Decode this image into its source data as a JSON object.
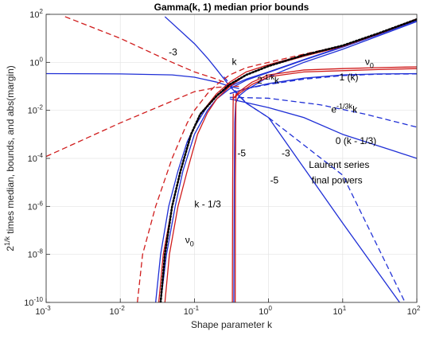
{
  "chart_data": {
    "type": "line",
    "title": "Gamma(k, 1) median prior bounds",
    "xlabel": "Shape parameter k",
    "ylabel": {
      "prefix": "2",
      "sup": "1/k",
      "rest": " times median, bounds, and abs(margin)"
    },
    "x_scale": "log",
    "y_scale": "log",
    "xlim": [
      0.001,
      100
    ],
    "ylim": [
      1e-10,
      100
    ],
    "x_ticks": [
      {
        "value": 0.001,
        "base": "10",
        "exp": "-3"
      },
      {
        "value": 0.01,
        "base": "10",
        "exp": "-2"
      },
      {
        "value": 0.1,
        "base": "10",
        "exp": "-1"
      },
      {
        "value": 1,
        "base": "10",
        "exp": "0"
      },
      {
        "value": 10,
        "base": "10",
        "exp": "1"
      },
      {
        "value": 100,
        "base": "10",
        "exp": "2"
      }
    ],
    "y_ticks": [
      {
        "value": 1e-10,
        "base": "10",
        "exp": "-10"
      },
      {
        "value": 1e-08,
        "base": "10",
        "exp": "-8"
      },
      {
        "value": 1e-06,
        "base": "10",
        "exp": "-6"
      },
      {
        "value": 0.0001,
        "base": "10",
        "exp": "-4"
      },
      {
        "value": 0.01,
        "base": "10",
        "exp": "-2"
      },
      {
        "value": 1,
        "base": "10",
        "exp": "0"
      },
      {
        "value": 100,
        "base": "10",
        "exp": "2"
      }
    ],
    "grid": true,
    "colors": {
      "red": "#d01c1c",
      "blue": "#1f2fd6",
      "median": "#000000"
    },
    "series": [
      {
        "color": "blue",
        "style": "solid",
        "points": [
          [
            0.001,
            0.34
          ],
          [
            0.01,
            0.33
          ],
          [
            0.05,
            0.3
          ],
          [
            0.1,
            0.24
          ],
          [
            0.2,
            0.15
          ],
          [
            0.3,
            0.1
          ],
          [
            0.4,
            0.08
          ]
        ]
      },
      {
        "color": "blue",
        "style": "solid",
        "points": [
          [
            0.04,
            80
          ],
          [
            0.1,
            6
          ],
          [
            0.15,
            1.5
          ],
          [
            0.2,
            0.5
          ],
          [
            0.3,
            0.1
          ],
          [
            0.4,
            0.04
          ],
          [
            0.5,
            0.02
          ],
          [
            1,
            0.005
          ],
          [
            10,
            2e-07
          ],
          [
            100,
            1e-11
          ]
        ]
      },
      {
        "color": "blue",
        "style": "dashed",
        "points": [
          [
            0.25,
            0.25
          ],
          [
            0.35,
            0.07
          ],
          [
            0.5,
            0.02
          ],
          [
            1,
            0.005
          ],
          [
            10,
            2e-05
          ],
          [
            100,
            1e-11
          ]
        ]
      },
      {
        "color": "blue",
        "style": "solid",
        "points": [
          [
            0.3,
            0.03
          ],
          [
            1,
            0.013
          ],
          [
            3,
            0.005
          ],
          [
            10,
            0.001
          ],
          [
            50,
            0.0002
          ],
          [
            100,
            0.0001
          ]
        ]
      },
      {
        "color": "blue",
        "style": "dashed",
        "points": [
          [
            0.3,
            0.035
          ],
          [
            1,
            0.032
          ],
          [
            5,
            0.017
          ],
          [
            20,
            0.007
          ],
          [
            100,
            0.002
          ]
        ]
      },
      {
        "color": "blue",
        "style": "solid",
        "points": [
          [
            0.3,
            0.05
          ],
          [
            0.5,
            0.08
          ],
          [
            1,
            0.13
          ],
          [
            3,
            0.22
          ],
          [
            10,
            0.3
          ],
          [
            30,
            0.33
          ],
          [
            100,
            0.34
          ]
        ]
      },
      {
        "color": "blue",
        "style": "dashed",
        "points": [
          [
            0.3,
            0.05
          ],
          [
            0.5,
            0.08
          ],
          [
            1,
            0.12
          ],
          [
            3,
            0.2
          ],
          [
            10,
            0.28
          ],
          [
            30,
            0.32
          ],
          [
            100,
            0.33
          ]
        ]
      },
      {
        "color": "blue",
        "style": "solid",
        "points": [
          [
            0.03,
            1e-10
          ],
          [
            0.035,
            1e-08
          ],
          [
            0.045,
            1e-06
          ],
          [
            0.06,
            3e-05
          ],
          [
            0.08,
            0.0005
          ],
          [
            0.1,
            0.002
          ],
          [
            0.15,
            0.015
          ],
          [
            0.2,
            0.04
          ],
          [
            0.3,
            0.1
          ],
          [
            0.5,
            0.2
          ],
          [
            1,
            0.4
          ],
          [
            3,
            1.3
          ],
          [
            10,
            4.5
          ],
          [
            30,
            15
          ],
          [
            100,
            60
          ]
        ]
      },
      {
        "color": "blue",
        "style": "solid",
        "points": [
          [
            0.035,
            1e-10
          ],
          [
            0.042,
            1e-08
          ],
          [
            0.055,
            1e-06
          ],
          [
            0.07,
            3e-05
          ],
          [
            0.1,
            0.001
          ],
          [
            0.15,
            0.01
          ],
          [
            0.2,
            0.03
          ],
          [
            0.3,
            0.08
          ],
          [
            0.5,
            0.18
          ],
          [
            1,
            0.38
          ],
          [
            3,
            1.25
          ],
          [
            10,
            4.3
          ],
          [
            30,
            14
          ],
          [
            100,
            55
          ]
        ]
      },
      {
        "color": "blue",
        "style": "solid",
        "points": [
          [
            0.34,
            1e-10
          ],
          [
            0.345,
            1e-05
          ],
          [
            0.35,
            0.003
          ],
          [
            0.36,
            0.02
          ],
          [
            0.4,
            0.04
          ],
          [
            0.5,
            0.07
          ],
          [
            1,
            0.25
          ],
          [
            3,
            1
          ],
          [
            10,
            3.5
          ],
          [
            100,
            50
          ]
        ]
      },
      {
        "color": "red",
        "style": "dashed",
        "points": [
          [
            0.001,
            0.00012
          ],
          [
            0.01,
            0.003
          ],
          [
            0.1,
            0.06
          ],
          [
            0.2,
            0.09
          ],
          [
            0.3,
            0.1
          ],
          [
            0.4,
            0.1
          ]
        ]
      },
      {
        "color": "red",
        "style": "dashed",
        "points": [
          [
            0.0018,
            80
          ],
          [
            0.01,
            10
          ],
          [
            0.05,
            1
          ],
          [
            0.1,
            0.4
          ],
          [
            0.2,
            0.2
          ],
          [
            0.3,
            0.12
          ],
          [
            0.35,
            0.1
          ]
        ]
      },
      {
        "color": "red",
        "style": "dashed",
        "points": [
          [
            0.017,
            1e-10
          ],
          [
            0.02,
            1e-08
          ],
          [
            0.03,
            1e-06
          ],
          [
            0.05,
            0.0001
          ],
          [
            0.08,
            0.003
          ],
          [
            0.1,
            0.01
          ],
          [
            0.15,
            0.05
          ],
          [
            0.2,
            0.12
          ],
          [
            0.3,
            0.3
          ],
          [
            0.5,
            0.6
          ],
          [
            1,
            1
          ],
          [
            3,
            2.2
          ],
          [
            10,
            5
          ],
          [
            30,
            15
          ],
          [
            100,
            60
          ]
        ]
      },
      {
        "color": "red",
        "style": "solid",
        "points": [
          [
            0.033,
            1e-10
          ],
          [
            0.038,
            1e-08
          ],
          [
            0.05,
            1e-06
          ],
          [
            0.065,
            3e-05
          ],
          [
            0.09,
            0.001
          ],
          [
            0.12,
            0.007
          ],
          [
            0.2,
            0.05
          ],
          [
            0.3,
            0.15
          ],
          [
            0.5,
            0.4
          ],
          [
            1,
            0.8
          ],
          [
            3,
            2
          ],
          [
            10,
            5
          ],
          [
            30,
            16
          ],
          [
            100,
            65
          ]
        ]
      },
      {
        "color": "red",
        "style": "solid",
        "points": [
          [
            0.04,
            1e-10
          ],
          [
            0.046,
            1e-08
          ],
          [
            0.06,
            1e-06
          ],
          [
            0.08,
            3e-05
          ],
          [
            0.11,
            0.001
          ],
          [
            0.15,
            0.008
          ],
          [
            0.2,
            0.03
          ],
          [
            0.3,
            0.1
          ],
          [
            0.5,
            0.3
          ],
          [
            1,
            0.7
          ],
          [
            3,
            1.8
          ],
          [
            10,
            4.6
          ],
          [
            30,
            15
          ],
          [
            100,
            60
          ]
        ]
      },
      {
        "color": "red",
        "style": "solid",
        "points": [
          [
            0.325,
            1e-10
          ],
          [
            0.328,
            1e-05
          ],
          [
            0.33,
            0.0005
          ],
          [
            0.332,
            0.01
          ],
          [
            0.335,
            0.05
          ]
        ]
      },
      {
        "color": "red",
        "style": "solid",
        "points": [
          [
            0.355,
            1e-10
          ],
          [
            0.357,
            1e-05
          ],
          [
            0.36,
            0.0005
          ],
          [
            0.362,
            0.01
          ],
          [
            0.365,
            0.05
          ]
        ]
      },
      {
        "color": "red",
        "style": "solid",
        "points": [
          [
            0.33,
            0.03
          ],
          [
            0.4,
            0.06
          ],
          [
            0.6,
            0.15
          ],
          [
            1,
            0.3
          ],
          [
            3,
            0.48
          ],
          [
            10,
            0.55
          ],
          [
            30,
            0.6
          ],
          [
            100,
            0.65
          ]
        ]
      },
      {
        "color": "red",
        "style": "solid",
        "points": [
          [
            0.33,
            0.03
          ],
          [
            0.4,
            0.05
          ],
          [
            0.6,
            0.12
          ],
          [
            1,
            0.25
          ],
          [
            3,
            0.4
          ],
          [
            10,
            0.45
          ],
          [
            30,
            0.5
          ],
          [
            100,
            0.55
          ]
        ]
      },
      {
        "color": "median",
        "style": "dotted",
        "points": [
          [
            0.035,
            1e-10
          ],
          [
            0.04,
            1e-08
          ],
          [
            0.05,
            1e-06
          ],
          [
            0.065,
            3e-05
          ],
          [
            0.09,
            0.001
          ],
          [
            0.12,
            0.007
          ],
          [
            0.2,
            0.04
          ],
          [
            0.3,
            0.12
          ],
          [
            0.5,
            0.3
          ],
          [
            1,
            0.7
          ],
          [
            3,
            2
          ],
          [
            10,
            5
          ],
          [
            30,
            16
          ],
          [
            100,
            62
          ]
        ]
      }
    ],
    "annotations": [
      {
        "parts": [
          {
            "text": "k"
          }
        ],
        "x": 0.32,
        "y": 0.8
      },
      {
        "parts": [
          {
            "text": "-3"
          }
        ],
        "x": 0.045,
        "y": 2
      },
      {
        "parts": [
          {
            "text": "ν"
          },
          {
            "text": "0",
            "sub": true
          }
        ],
        "x": 20,
        "y": 0.8
      },
      {
        "parts": [
          {
            "text": "1 (k)"
          }
        ],
        "x": 9,
        "y": 0.18
      },
      {
        "parts": [
          {
            "text": "2"
          },
          {
            "text": "-1/k",
            "sup": true
          },
          {
            "text": "k"
          }
        ],
        "x": 0.7,
        "y": 0.13
      },
      {
        "parts": [
          {
            "text": "e"
          },
          {
            "text": "-1/3k",
            "sup": true
          },
          {
            "text": "k"
          }
        ],
        "x": 7,
        "y": 0.008
      },
      {
        "parts": [
          {
            "text": "0 (k - 1/3)"
          }
        ],
        "x": 8,
        "y": 0.0004
      },
      {
        "parts": [
          {
            "text": "-5"
          }
        ],
        "x": 0.38,
        "y": 0.00012
      },
      {
        "parts": [
          {
            "text": "-3"
          }
        ],
        "x": 1.5,
        "y": 0.00012
      },
      {
        "parts": [
          {
            "text": "Laurent series"
          }
        ],
        "x": 3.5,
        "y": 4e-05
      },
      {
        "parts": [
          {
            "text": "final powers"
          }
        ],
        "x": 3.8,
        "y": 9e-06
      },
      {
        "parts": [
          {
            "text": "-5"
          }
        ],
        "x": 1.05,
        "y": 9e-06
      },
      {
        "parts": [
          {
            "text": "k - 1/3"
          }
        ],
        "x": 0.1,
        "y": 9e-07
      },
      {
        "parts": [
          {
            "text": "ν"
          },
          {
            "text": "0",
            "sub": true
          }
        ],
        "x": 0.075,
        "y": 3e-08
      }
    ]
  }
}
